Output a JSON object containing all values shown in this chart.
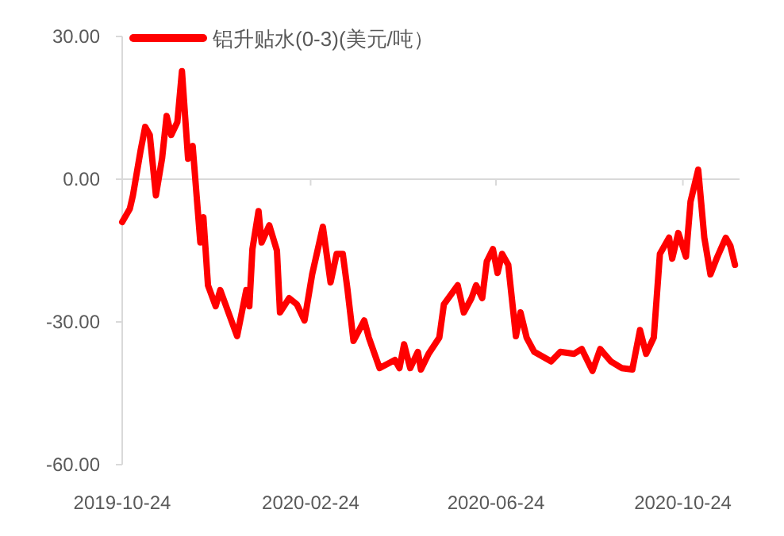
{
  "chart_data": {
    "type": "line",
    "legend": "top",
    "x": [
      "2019-10-24",
      "2019-10-29",
      "2019-10-31",
      "2019-11-05",
      "2019-11-08",
      "2019-11-11",
      "2019-11-15",
      "2019-11-19",
      "2019-11-22",
      "2019-11-25",
      "2019-11-29",
      "2019-12-02",
      "2019-12-06",
      "2019-12-09",
      "2019-12-14",
      "2019-12-16",
      "2019-12-19",
      "2019-12-24",
      "2019-12-27",
      "2020-01-07",
      "2020-01-13",
      "2020-01-15",
      "2020-01-17",
      "2020-01-21",
      "2020-01-23",
      "2020-01-28",
      "2020-02-02",
      "2020-02-04",
      "2020-02-10",
      "2020-02-15",
      "2020-02-20",
      "2020-02-25",
      "2020-03-03",
      "2020-03-08",
      "2020-03-12",
      "2020-03-16",
      "2020-03-19",
      "2020-03-23",
      "2020-03-30",
      "2020-04-02",
      "2020-04-09",
      "2020-04-19",
      "2020-04-22",
      "2020-04-25",
      "2020-04-29",
      "2020-05-04",
      "2020-05-06",
      "2020-05-11",
      "2020-05-18",
      "2020-05-21",
      "2020-05-30",
      "2020-06-03",
      "2020-06-08",
      "2020-06-11",
      "2020-06-15",
      "2020-06-18",
      "2020-06-22",
      "2020-06-25",
      "2020-06-28",
      "2020-07-02",
      "2020-07-07",
      "2020-07-10",
      "2020-07-14",
      "2020-07-19",
      "2020-07-30",
      "2020-08-05",
      "2020-08-14",
      "2020-08-19",
      "2020-08-26",
      "2020-08-31",
      "2020-09-07",
      "2020-09-14",
      "2020-09-21",
      "2020-09-26",
      "2020-09-30",
      "2020-10-05",
      "2020-10-09",
      "2020-10-15",
      "2020-10-17",
      "2020-10-21",
      "2020-10-26",
      "2020-10-29",
      "2020-11-03",
      "2020-11-07",
      "2020-11-11",
      "2020-11-15",
      "2020-11-21",
      "2020-11-24",
      "2020-11-27"
    ],
    "series": [
      {
        "name": "铝升贴水(0-3)(美元/吨）",
        "color": "#ff0000",
        "values": [
          -9,
          -6.2,
          -3.4,
          6,
          11,
          9.3,
          -3.4,
          4.3,
          13.3,
          9.3,
          12,
          22.7,
          4.3,
          7,
          -13.3,
          -8,
          -22.3,
          -26.7,
          -23.3,
          -33,
          -23.3,
          -26.7,
          -14.7,
          -6.7,
          -13.3,
          -9.7,
          -15,
          -28,
          -25,
          -26.3,
          -29.7,
          -20,
          -10,
          -21.7,
          -15.7,
          -15.7,
          -23,
          -34,
          -29.7,
          -33.3,
          -39.7,
          -38,
          -39.7,
          -34.7,
          -39.7,
          -36.3,
          -40,
          -36.7,
          -33.3,
          -26.3,
          -22.3,
          -28,
          -25,
          -22.3,
          -25,
          -17.3,
          -14.7,
          -19.7,
          -15.7,
          -18,
          -33,
          -28,
          -33.3,
          -36.3,
          -38.3,
          -36.3,
          -36.7,
          -35.7,
          -40.3,
          -35.7,
          -38.3,
          -39.7,
          -40,
          -31.7,
          -36.7,
          -33.3,
          -15.7,
          -12.3,
          -16.7,
          -11.3,
          -16.3,
          -4.7,
          2,
          -12.3,
          -20,
          -16.7,
          -12.3,
          -14,
          -18
        ]
      }
    ],
    "xlim": [
      "2019-10-24",
      "2020-11-30"
    ],
    "xticks": [
      "2019-10-24",
      "2020-02-24",
      "2020-06-24",
      "2020-10-24"
    ],
    "ylim": [
      -60,
      30
    ],
    "yticks": [
      {
        "value": -60,
        "label": "-60.00"
      },
      {
        "value": -30,
        "label": "-30.00"
      },
      {
        "value": 0,
        "label": "0.00"
      },
      {
        "value": 30,
        "label": "30.00"
      }
    ],
    "ref_lines": [
      {
        "axis": "y",
        "value": 0,
        "color": "#d9d9d9"
      }
    ]
  }
}
